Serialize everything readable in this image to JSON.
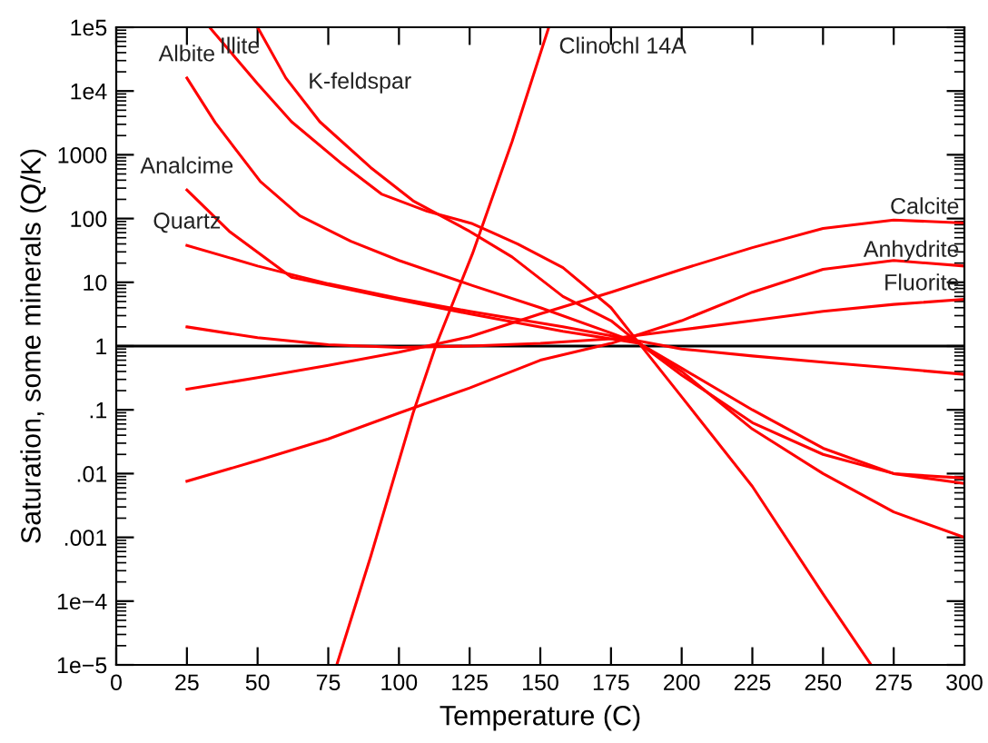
{
  "chart_data": {
    "type": "line",
    "xlabel": "Temperature (C)",
    "ylabel": "Saturation, some minerals (Q/K)",
    "log": "y",
    "grid": false,
    "legend": false,
    "marker": "none",
    "line_style": "solid",
    "xlim": [
      0,
      300
    ],
    "xticks": [
      0,
      25,
      50,
      75,
      100,
      125,
      150,
      175,
      200,
      225,
      250,
      275,
      300
    ],
    "ylim": [
      1e-05,
      100000.0
    ],
    "yticks": [
      {
        "value": 1e-05,
        "label": "1e−5"
      },
      {
        "value": 0.0001,
        "label": "1e−4"
      },
      {
        "value": 0.001,
        "label": ".001"
      },
      {
        "value": 0.01,
        "label": ".01"
      },
      {
        "value": 0.1,
        "label": ".1"
      },
      1,
      10,
      100,
      1000,
      {
        "value": 10000.0,
        "label": "1e4"
      },
      {
        "value": 100000.0,
        "label": "1e5"
      }
    ],
    "ref_lines": [
      {
        "axis": "y",
        "value": 1,
        "color": "#000000"
      }
    ],
    "series": [
      {
        "name": "Illite",
        "color": "#ff0000",
        "x": [
          33,
          50,
          62,
          80,
          94,
          110,
          126,
          142,
          158,
          175,
          185,
          200,
          225,
          250,
          267
        ],
        "values": [
          100000,
          13000,
          3300,
          710,
          240,
          130,
          83,
          40,
          17,
          4,
          1.1,
          0.16,
          0.0063,
          0.00013,
          1e-05
        ]
      },
      {
        "name": "K-feldspar",
        "color": "#ff0000",
        "x": [
          50,
          60,
          72,
          90,
          105,
          125,
          140,
          158,
          175,
          185,
          200,
          225,
          250,
          275,
          300
        ],
        "values": [
          100000,
          16000,
          3300,
          630,
          190,
          63,
          25,
          6,
          2.5,
          1.1,
          0.35,
          0.063,
          0.02,
          0.01,
          0.0085
        ]
      },
      {
        "name": "Albite",
        "color": "#ff0000",
        "x": [
          25,
          35,
          51,
          65,
          83,
          100,
          126,
          150,
          175,
          185,
          200,
          225,
          250,
          275,
          300
        ],
        "values": [
          16000,
          3200,
          380,
          110,
          44,
          22,
          8.9,
          4,
          1.6,
          1.1,
          0.4,
          0.05,
          0.01,
          0.0025,
          0.001
        ]
      },
      {
        "name": "Analcime",
        "color": "#ff0000",
        "x": [
          25,
          40,
          62,
          94,
          125,
          158,
          175,
          185,
          200,
          225,
          250,
          275,
          300
        ],
        "values": [
          280,
          63,
          12,
          6,
          3.2,
          1.7,
          1.3,
          1.1,
          0.45,
          0.1,
          0.025,
          0.01,
          0.007
        ]
      },
      {
        "name": "Quartz",
        "color": "#ff0000",
        "x": [
          25,
          50,
          75,
          100,
          125,
          158,
          185,
          200,
          225,
          250,
          275,
          300
        ],
        "values": [
          38,
          18,
          9.5,
          5.6,
          3.5,
          2,
          1.2,
          0.9,
          0.7,
          0.56,
          0.45,
          0.36
        ]
      },
      {
        "name": "Clinochl 14A",
        "color": "#ff0000",
        "x": [
          78,
          90,
          105,
          113,
          126,
          140,
          153
        ],
        "values": [
          1e-05,
          0.0005,
          0.089,
          1,
          28,
          1600,
          100000
        ]
      },
      {
        "color": "#ff0000",
        "x": [
          25,
          50,
          75,
          100,
          125,
          150,
          175,
          200,
          225,
          250,
          275,
          300
        ],
        "name": "Calcite",
        "values": [
          0.21,
          0.32,
          0.5,
          0.8,
          1.4,
          3.2,
          7,
          16,
          35,
          70,
          95,
          85
        ]
      },
      {
        "color": "#ff0000",
        "x": [
          25,
          50,
          75,
          100,
          125,
          150,
          175,
          200,
          225,
          250,
          275,
          300
        ],
        "name": "Anhydrite",
        "values": [
          0.0076,
          0.016,
          0.035,
          0.089,
          0.22,
          0.6,
          1.1,
          2.5,
          7,
          16,
          22,
          18
        ]
      },
      {
        "color": "#ff0000",
        "x": [
          25,
          50,
          75,
          100,
          125,
          150,
          175,
          200,
          225,
          250,
          275,
          300
        ],
        "name": "Fluorite",
        "values": [
          2,
          1.35,
          1.05,
          0.95,
          1,
          1.1,
          1.3,
          1.8,
          2.5,
          3.5,
          4.5,
          5.4
        ]
      }
    ]
  }
}
